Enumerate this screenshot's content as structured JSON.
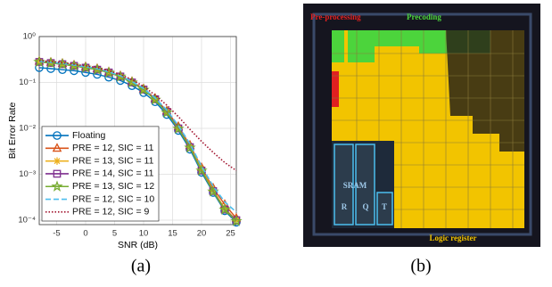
{
  "chart_data": {
    "type": "line",
    "xlabel": "SNR (dB)",
    "ylabel": "Bit Error Rate",
    "x": [
      -8,
      -6,
      -4,
      -2,
      0,
      2,
      4,
      6,
      8,
      10,
      12,
      14,
      16,
      18,
      20,
      22,
      24,
      26
    ],
    "xlim": [
      -8,
      26
    ],
    "xticks": [
      -5,
      0,
      5,
      10,
      15,
      20,
      25
    ],
    "ylim": [
      8e-05,
      1
    ],
    "log_y": true,
    "grid": true,
    "legend": "lower left",
    "yticks": [
      {
        "value": 0.0001,
        "label": "10⁻⁴"
      },
      {
        "value": 0.001,
        "label": "10⁻³"
      },
      {
        "value": 0.01,
        "label": "10⁻²"
      },
      {
        "value": 0.1,
        "label": "10⁻¹"
      },
      {
        "value": 1,
        "label": "10⁰"
      }
    ],
    "series": [
      {
        "name": "Floating",
        "color": "#0072BD",
        "marker": "circle",
        "dash": "solid",
        "values": [
          0.21,
          0.2,
          0.19,
          0.18,
          0.165,
          0.15,
          0.13,
          0.11,
          0.085,
          0.06,
          0.038,
          0.02,
          0.009,
          0.0035,
          0.0011,
          0.0004,
          0.00016,
          9e-05
        ]
      },
      {
        "name": "PRE = 12, SIC = 11",
        "color": "#D95319",
        "marker": "triangle",
        "dash": "solid",
        "values": [
          0.29,
          0.275,
          0.26,
          0.24,
          0.22,
          0.2,
          0.17,
          0.14,
          0.105,
          0.073,
          0.045,
          0.024,
          0.011,
          0.0043,
          0.0014,
          0.0005,
          0.00022,
          0.00011
        ]
      },
      {
        "name": "PRE = 13, SIC = 11",
        "color": "#EDB120",
        "marker": "asterisk",
        "dash": "solid",
        "values": [
          0.28,
          0.265,
          0.25,
          0.23,
          0.21,
          0.19,
          0.165,
          0.135,
          0.1,
          0.07,
          0.043,
          0.023,
          0.01,
          0.004,
          0.0013,
          0.00045,
          0.00018,
          0.0001
        ]
      },
      {
        "name": "PRE = 14, SIC = 11",
        "color": "#7E2F8E",
        "marker": "square",
        "dash": "solid",
        "values": [
          0.28,
          0.265,
          0.25,
          0.23,
          0.21,
          0.19,
          0.165,
          0.135,
          0.1,
          0.07,
          0.043,
          0.023,
          0.01,
          0.0039,
          0.0012,
          0.00043,
          0.00017,
          0.0001
        ]
      },
      {
        "name": "PRE = 13, SIC = 12",
        "color": "#77AC30",
        "marker": "star",
        "dash": "solid",
        "values": [
          0.28,
          0.265,
          0.25,
          0.23,
          0.21,
          0.19,
          0.164,
          0.134,
          0.1,
          0.069,
          0.042,
          0.022,
          0.0098,
          0.0038,
          0.0012,
          0.00042,
          0.00017,
          9.5e-05
        ]
      },
      {
        "name": "PRE = 12, SIC = 10",
        "color": "#4DBEEE",
        "marker": "none",
        "dash": "dashed",
        "values": [
          0.29,
          0.275,
          0.26,
          0.24,
          0.22,
          0.2,
          0.17,
          0.14,
          0.105,
          0.074,
          0.046,
          0.025,
          0.0115,
          0.0046,
          0.0015,
          0.00055,
          0.00025,
          0.00015
        ]
      },
      {
        "name": "PRE = 12, SIC = 9",
        "color": "#A2142F",
        "marker": "none",
        "dash": "dotted",
        "values": [
          0.3,
          0.285,
          0.27,
          0.25,
          0.23,
          0.21,
          0.18,
          0.15,
          0.115,
          0.082,
          0.053,
          0.032,
          0.018,
          0.0095,
          0.0052,
          0.003,
          0.0018,
          0.0012
        ]
      }
    ]
  },
  "captions": [
    "(a)",
    "(b)"
  ],
  "layout": {
    "labels": [
      "Pre-processing",
      "Precoding",
      "SRAM",
      "R",
      "Q",
      "T",
      "Logic register"
    ]
  }
}
